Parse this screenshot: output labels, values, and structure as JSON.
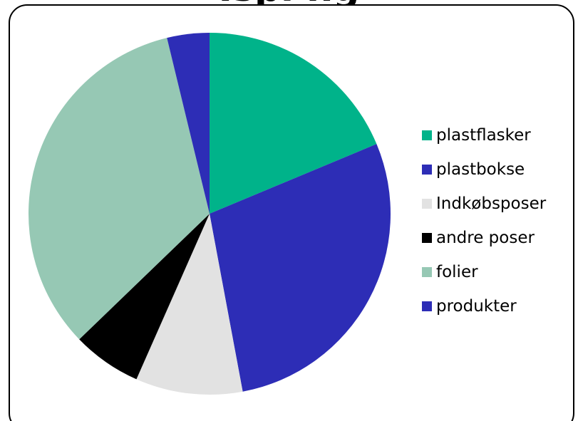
{
  "chart_data": {
    "type": "pie",
    "title": "",
    "partial_title_visible": "Ispi                                    ng",
    "categories": [
      "plastflasker",
      "plastbokse",
      "Indkøbsposer",
      "andre poser",
      "folier",
      "produkter"
    ],
    "values": [
      18.8,
      28.5,
      9.6,
      6.2,
      33.6,
      3.8
    ],
    "colors": [
      "#00B38A",
      "#2D2DB6",
      "#E2E2E2",
      "#000000",
      "#96C8B4",
      "#2D2DB6"
    ],
    "start_angle_deg": 0,
    "direction": "clockwise",
    "legend_position": "right"
  }
}
